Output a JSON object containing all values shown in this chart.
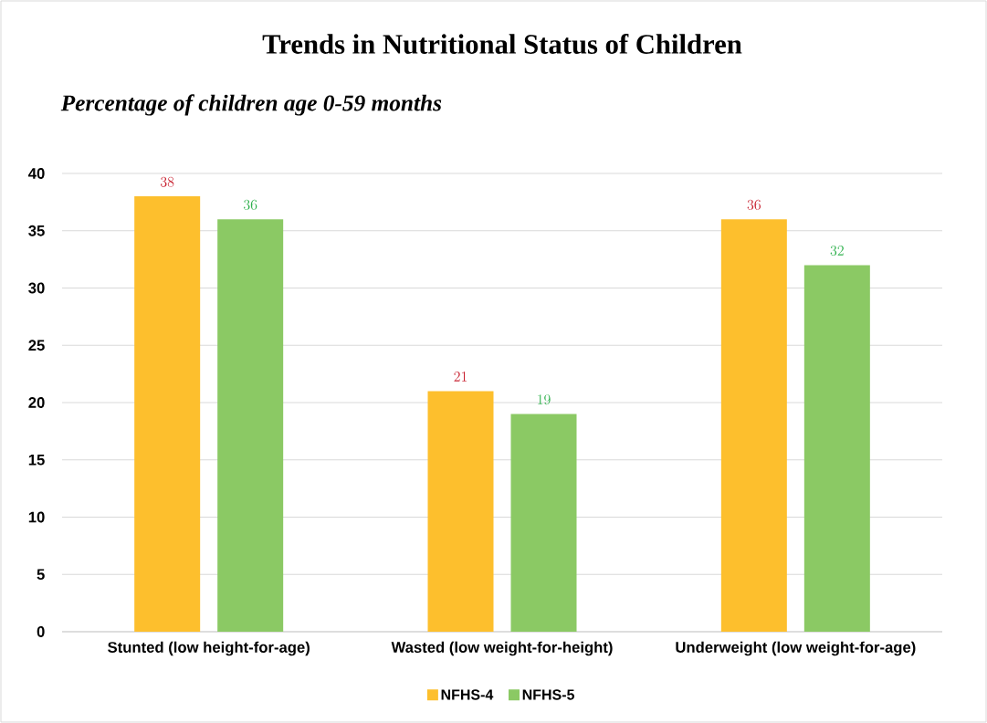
{
  "chart_data": {
    "type": "bar",
    "title": "Trends in Nutritional Status of Children",
    "subtitle": "Percentage of children age 0-59 months",
    "categories": [
      "Stunted (low height-for-age)",
      "Wasted (low weight-for-height)",
      "Underweight (low weight-for-age)"
    ],
    "series": [
      {
        "name": "NFHS-4",
        "color": "#fdbf2d",
        "values": [
          38,
          21,
          36
        ]
      },
      {
        "name": "NFHS-5",
        "color": "#8bc964",
        "values": [
          36,
          19,
          32
        ]
      }
    ],
    "ylim": [
      0,
      40
    ],
    "yticks": [
      0,
      5,
      10,
      15,
      20,
      25,
      30,
      35,
      40
    ],
    "grid": "y",
    "legend": "bottom",
    "data_labels": true
  }
}
